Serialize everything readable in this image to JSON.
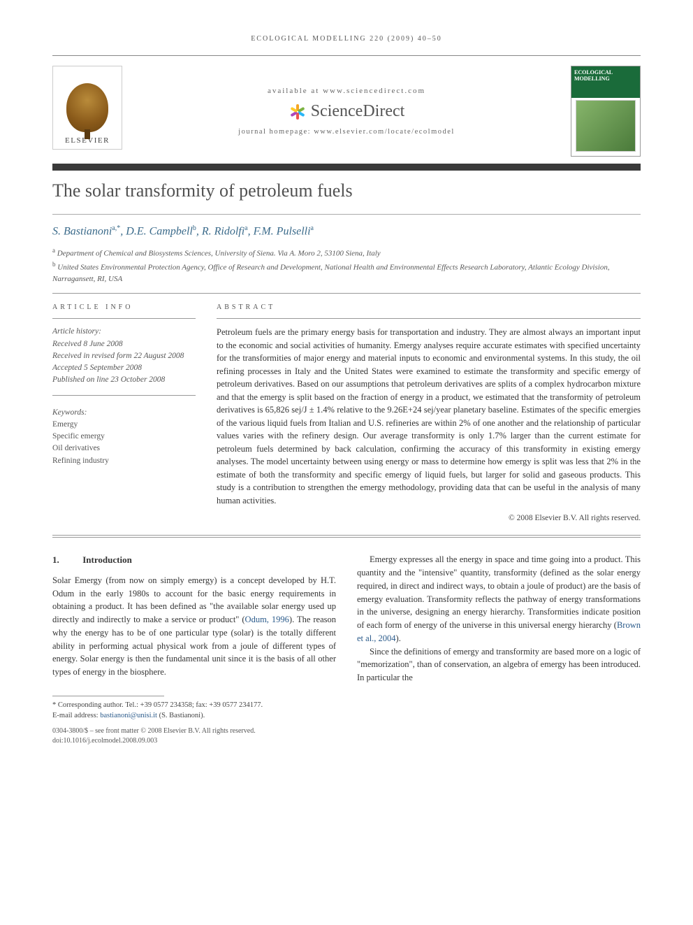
{
  "running_head": "ecological modelling 220 (2009) 40–50",
  "masthead": {
    "publisher": "ELSEVIER",
    "available_at": "available at www.sciencedirect.com",
    "platform": "ScienceDirect",
    "homepage": "journal homepage: www.elsevier.com/locate/ecolmodel",
    "journal_cover_title": "ECOLOGICAL MODELLING",
    "burst_colors": [
      "#f5a623",
      "#7cb342",
      "#29b6f6",
      "#ef5350",
      "#ab47bc",
      "#ffca28"
    ]
  },
  "title": "The solar transformity of petroleum fuels",
  "authors_html": "S. Bastianoni",
  "authors": [
    {
      "name": "S. Bastianoni",
      "marks": "a,*"
    },
    {
      "name": "D.E. Campbell",
      "marks": "b"
    },
    {
      "name": "R. Ridolfi",
      "marks": "a"
    },
    {
      "name": "F.M. Pulselli",
      "marks": "a"
    }
  ],
  "affiliations": [
    {
      "mark": "a",
      "text": "Department of Chemical and Biosystems Sciences, University of Siena. Via A. Moro 2, 53100 Siena, Italy"
    },
    {
      "mark": "b",
      "text": "United States Environmental Protection Agency, Office of Research and Development, National Health and Environmental Effects Research Laboratory, Atlantic Ecology Division, Narragansett, RI, USA"
    }
  ],
  "article_info_label": "ARTICLE INFO",
  "abstract_label": "ABSTRACT",
  "history": {
    "label": "Article history:",
    "received": "Received 8 June 2008",
    "revised": "Received in revised form 22 August 2008",
    "accepted": "Accepted 5 September 2008",
    "published": "Published on line 23 October 2008"
  },
  "keywords": {
    "label": "Keywords:",
    "items": [
      "Emergy",
      "Specific emergy",
      "Oil derivatives",
      "Refining industry"
    ]
  },
  "abstract": "Petroleum fuels are the primary energy basis for transportation and industry. They are almost always an important input to the economic and social activities of humanity. Emergy analyses require accurate estimates with specified uncertainty for the transformities of major energy and material inputs to economic and environmental systems. In this study, the oil refining processes in Italy and the United States were examined to estimate the transformity and specific emergy of petroleum derivatives. Based on our assumptions that petroleum derivatives are splits of a complex hydrocarbon mixture and that the emergy is split based on the fraction of energy in a product, we estimated that the transformity of petroleum derivatives is 65,826 sej/J ± 1.4% relative to the 9.26E+24 sej/year planetary baseline. Estimates of the specific emergies of the various liquid fuels from Italian and U.S. refineries are within 2% of one another and the relationship of particular values varies with the refinery design. Our average transformity is only 1.7% larger than the current estimate for petroleum fuels determined by back calculation, confirming the accuracy of this transformity in existing emergy analyses. The model uncertainty between using energy or mass to determine how emergy is split was less that 2% in the estimate of both the transformity and specific emergy of liquid fuels, but larger for solid and gaseous products. This study is a contribution to strengthen the emergy methodology, providing data that can be useful in the analysis of many human activities.",
  "abstract_copyright": "© 2008 Elsevier B.V. All rights reserved.",
  "section1": {
    "num": "1.",
    "title": "Introduction"
  },
  "body": {
    "col1_p1": "Solar Emergy (from now on simply emergy) is a concept developed by H.T. Odum in the early 1980s to account for the basic energy requirements in obtaining a product. It has been defined as \"the available solar energy used up directly and indirectly to make a service or product\" (Odum, 1996). The reason why the energy has to be of one particular type (solar) is the totally different ability in performing actual physical work from a joule of different types of energy. Solar energy is then the fundamental unit since it is the basis of all other types of energy in the biosphere.",
    "col2_p1": "Emergy expresses all the energy in space and time going into a product. This quantity and the \"intensive\" quantity, transformity (defined as the solar energy required, in direct and indirect ways, to obtain a joule of product) are the basis of emergy evaluation. Transformity reflects the pathway of energy transformations in the universe, designing an energy hierarchy. Transformities indicate position of each form of energy of the universe in this universal energy hierarchy (Brown et al., 2004).",
    "col2_p2": "Since the definitions of emergy and transformity are based more on a logic of \"memorization\", than of conservation, an algebra of emergy has been introduced. In particular the"
  },
  "footnote": {
    "corresponding": "* Corresponding author. Tel.: +39 0577 234358; fax: +39 0577 234177.",
    "email_label": "E-mail address:",
    "email": "bastianoni@unisi.it",
    "email_who": "(S. Bastianoni)."
  },
  "footer": {
    "line1": "0304-3800/$ – see front matter © 2008 Elsevier B.V. All rights reserved.",
    "line2": "doi:10.1016/j.ecolmodel.2008.09.003"
  },
  "colors": {
    "title_bar": "#3a3a3a",
    "link": "#2a5a8a",
    "author": "#3a6a8a"
  }
}
